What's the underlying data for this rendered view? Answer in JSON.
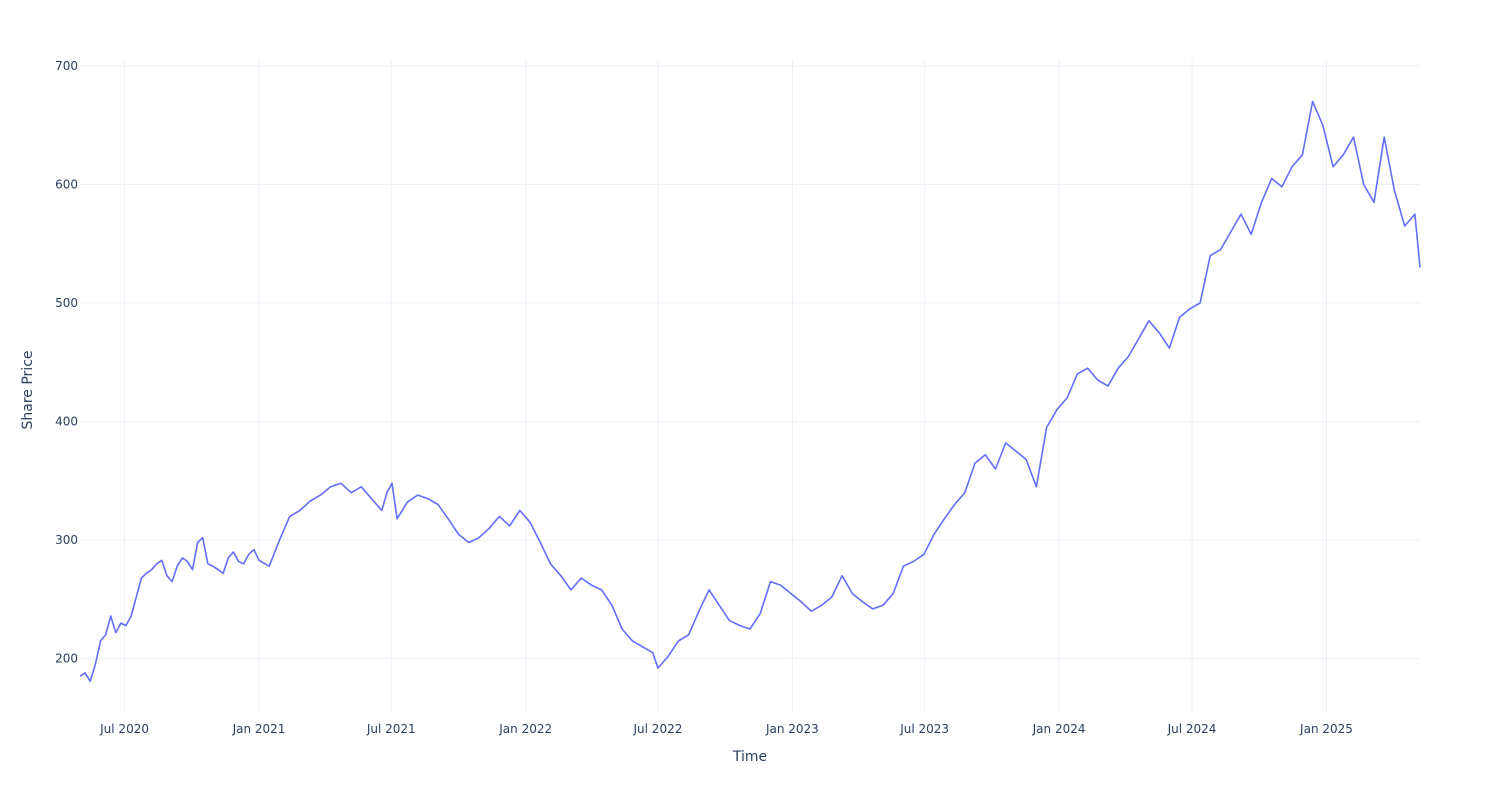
{
  "chart_data": {
    "type": "line",
    "title": "",
    "xlabel": "Time",
    "ylabel": "Share Price",
    "x_tick_labels": [
      "Jul 2020",
      "Jan 2021",
      "Jul 2021",
      "Jan 2022",
      "Jul 2022",
      "Jan 2023",
      "Jul 2023",
      "Jan 2024",
      "Jul 2024",
      "Jan 2025"
    ],
    "x_tick_dates": [
      "2020-07-01",
      "2021-01-01",
      "2021-07-01",
      "2022-01-01",
      "2022-07-01",
      "2023-01-01",
      "2023-07-01",
      "2024-01-01",
      "2024-07-01",
      "2025-01-01"
    ],
    "y_ticks": [
      200,
      300,
      400,
      500,
      600,
      700
    ],
    "xlim": [
      "2020-05-01",
      "2025-05-09"
    ],
    "ylim": [
      155,
      705
    ],
    "grid": true,
    "line_color": "#636efa",
    "series": [
      {
        "x": [
          "2020-05-01",
          "2020-05-08",
          "2020-05-15",
          "2020-05-22",
          "2020-05-29",
          "2020-06-05",
          "2020-06-12",
          "2020-06-19",
          "2020-06-26",
          "2020-07-03",
          "2020-07-10",
          "2020-07-17",
          "2020-07-24",
          "2020-07-31",
          "2020-08-07",
          "2020-08-14",
          "2020-08-21",
          "2020-08-28",
          "2020-09-04",
          "2020-09-11",
          "2020-09-18",
          "2020-09-25",
          "2020-10-02",
          "2020-10-09",
          "2020-10-16",
          "2020-10-23",
          "2020-10-30",
          "2020-11-06",
          "2020-11-13",
          "2020-11-20",
          "2020-11-27",
          "2020-12-04",
          "2020-12-11",
          "2020-12-18",
          "2020-12-25",
          "2021-01-01",
          "2021-01-15",
          "2021-01-29",
          "2021-02-12",
          "2021-02-26",
          "2021-03-12",
          "2021-03-26",
          "2021-04-09",
          "2021-04-23",
          "2021-05-07",
          "2021-05-21",
          "2021-06-04",
          "2021-06-18",
          "2021-06-25",
          "2021-07-02",
          "2021-07-09",
          "2021-07-23",
          "2021-08-06",
          "2021-08-20",
          "2021-09-03",
          "2021-09-17",
          "2021-10-01",
          "2021-10-15",
          "2021-10-29",
          "2021-11-12",
          "2021-11-26",
          "2021-12-10",
          "2021-12-24",
          "2022-01-07",
          "2022-01-21",
          "2022-02-04",
          "2022-02-18",
          "2022-03-04",
          "2022-03-18",
          "2022-04-01",
          "2022-04-15",
          "2022-04-29",
          "2022-05-13",
          "2022-05-27",
          "2022-06-10",
          "2022-06-24",
          "2022-07-01",
          "2022-07-15",
          "2022-07-29",
          "2022-08-12",
          "2022-08-26",
          "2022-09-09",
          "2022-09-23",
          "2022-10-07",
          "2022-10-21",
          "2022-11-04",
          "2022-11-18",
          "2022-12-02",
          "2022-12-16",
          "2022-12-30",
          "2023-01-13",
          "2023-01-27",
          "2023-02-10",
          "2023-02-24",
          "2023-03-10",
          "2023-03-24",
          "2023-04-07",
          "2023-04-21",
          "2023-05-05",
          "2023-05-19",
          "2023-06-02",
          "2023-06-16",
          "2023-06-30",
          "2023-07-14",
          "2023-07-28",
          "2023-08-11",
          "2023-08-25",
          "2023-09-08",
          "2023-09-22",
          "2023-10-06",
          "2023-10-20",
          "2023-11-03",
          "2023-11-17",
          "2023-12-01",
          "2023-12-15",
          "2023-12-29",
          "2024-01-12",
          "2024-01-26",
          "2024-02-09",
          "2024-02-23",
          "2024-03-08",
          "2024-03-22",
          "2024-04-05",
          "2024-04-19",
          "2024-05-03",
          "2024-05-17",
          "2024-05-31",
          "2024-06-14",
          "2024-06-28",
          "2024-07-12",
          "2024-07-26",
          "2024-08-09",
          "2024-08-23",
          "2024-09-06",
          "2024-09-20",
          "2024-10-04",
          "2024-10-18",
          "2024-11-01",
          "2024-11-15",
          "2024-11-29",
          "2024-12-13",
          "2024-12-27",
          "2025-01-10",
          "2025-01-24",
          "2025-02-07",
          "2025-02-21",
          "2025-03-07",
          "2025-03-21",
          "2025-04-04",
          "2025-04-18",
          "2025-05-02",
          "2025-05-09"
        ],
        "y": [
          185,
          188,
          181,
          195,
          215,
          220,
          236,
          222,
          230,
          228,
          236,
          252,
          268,
          272,
          275,
          280,
          283,
          270,
          265,
          278,
          285,
          282,
          275,
          298,
          302,
          280,
          278,
          275,
          272,
          285,
          290,
          282,
          280,
          288,
          292,
          283,
          278,
          300,
          320,
          325,
          333,
          338,
          345,
          348,
          340,
          345,
          335,
          325,
          340,
          348,
          318,
          332,
          338,
          335,
          330,
          318,
          305,
          298,
          302,
          310,
          320,
          312,
          325,
          315,
          298,
          280,
          270,
          258,
          268,
          262,
          258,
          245,
          225,
          215,
          210,
          205,
          192,
          202,
          215,
          220,
          240,
          258,
          245,
          232,
          228,
          225,
          238,
          265,
          262,
          255,
          248,
          240,
          245,
          252,
          270,
          255,
          248,
          242,
          245,
          255,
          278,
          282,
          288,
          305,
          318,
          330,
          340,
          365,
          372,
          360,
          382,
          375,
          368,
          345,
          395,
          410,
          420,
          440,
          445,
          435,
          430,
          445,
          455,
          470,
          485,
          475,
          462,
          488,
          495,
          500,
          540,
          545,
          560,
          575,
          558,
          585,
          605,
          598,
          615,
          625,
          670,
          650,
          615,
          625,
          640,
          600,
          585,
          640,
          595,
          565,
          575,
          530
        ]
      }
    ]
  }
}
